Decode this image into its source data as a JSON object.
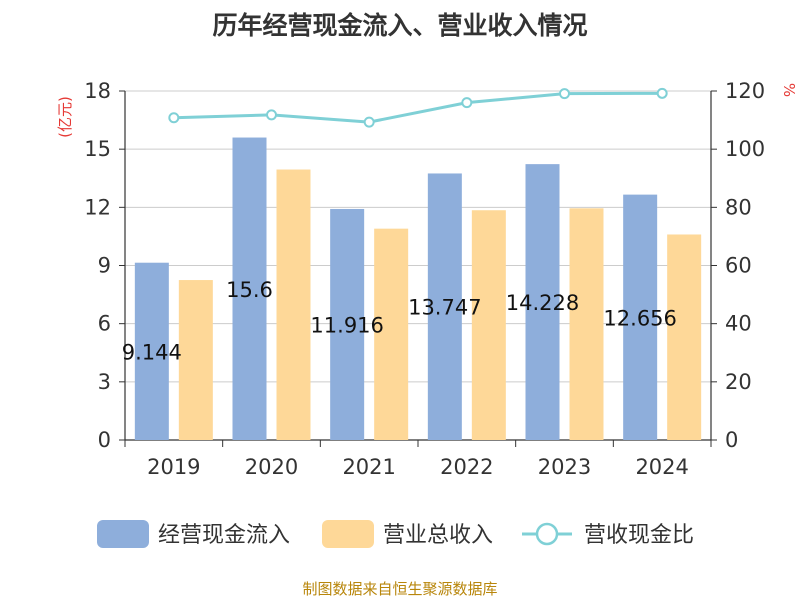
{
  "title": "历年经营现金流入、营业收入情况",
  "source": "制图数据来自恒生聚源数据库",
  "chart_data": {
    "type": "bar",
    "categories": [
      "2019",
      "2020",
      "2021",
      "2022",
      "2023",
      "2024"
    ],
    "series": [
      {
        "name": "经营现金流入",
        "type": "bar",
        "axis": "left",
        "color": "#8eaedb",
        "values": [
          9.144,
          15.6,
          11.916,
          13.747,
          14.228,
          12.656
        ],
        "labels": [
          "9.144",
          "15.6",
          "11.916",
          "13.747",
          "14.228",
          "12.656"
        ]
      },
      {
        "name": "营业总收入",
        "type": "bar",
        "axis": "left",
        "color": "#fed898",
        "values": [
          8.25,
          13.95,
          10.9,
          11.85,
          11.95,
          10.6
        ]
      },
      {
        "name": "营收现金比",
        "type": "line",
        "axis": "right",
        "color": "#7fd0d6",
        "values": [
          110.8,
          111.8,
          109.3,
          116.0,
          119.1,
          119.2
        ]
      }
    ],
    "left_axis": {
      "label": "(亿元)",
      "ticks": [
        "0",
        "3",
        "6",
        "9",
        "12",
        "15",
        "18"
      ],
      "ylim": [
        0,
        18
      ]
    },
    "right_axis": {
      "label": "%",
      "ticks": [
        "0",
        "20",
        "40",
        "60",
        "80",
        "100",
        "120"
      ],
      "ylim": [
        0,
        120
      ]
    },
    "grid": true,
    "legend_position": "bottom"
  }
}
